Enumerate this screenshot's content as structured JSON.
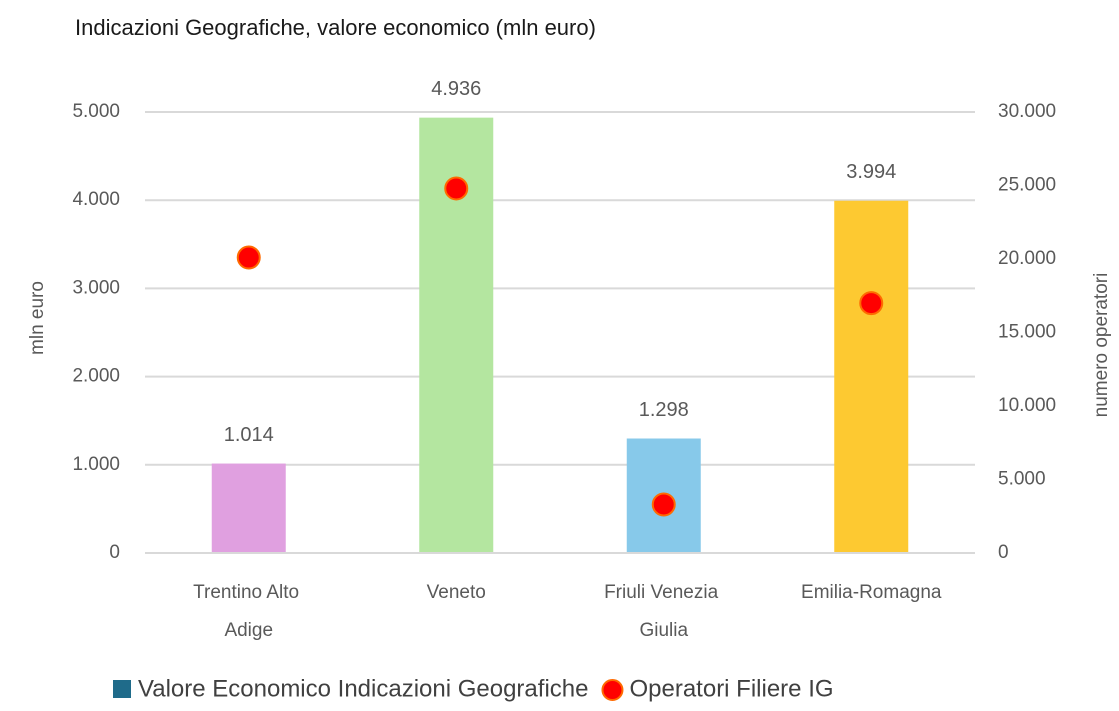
{
  "chart_data": {
    "type": "bar",
    "title": "Indicazioni Geografiche, valore economico (mln euro)",
    "categories": [
      "Trentino Alto Adige",
      "Veneto",
      "Friuli Venezia Giulia",
      "Emilia-Romagna"
    ],
    "ylabel": "mln euro",
    "y2label": "numero operatori",
    "series": [
      {
        "name": "Valore Economico Indicazioni Geografiche",
        "color": "#1f6b8a",
        "colors": [
          "#e0a0e0",
          "#b4e6a0",
          "#87c9ea",
          "#fdc931"
        ],
        "values": [
          1014,
          4936,
          1298,
          3994
        ],
        "value_labels": [
          "1.014",
          "4.936",
          "1.298",
          "3.994"
        ]
      },
      {
        "name": "Operatori Filiere IG",
        "type": "scatter",
        "color": "#ff0000",
        "axis": "y2",
        "values": [
          20100,
          24800,
          3300,
          17000
        ]
      }
    ],
    "ylim": [
      0,
      5000
    ],
    "yticks": [
      0,
      {
        "value": 1000,
        "label": "1.000"
      },
      {
        "value": 2000,
        "label": "2.000"
      },
      {
        "value": 3000,
        "label": "3.000"
      },
      {
        "value": 4000,
        "label": "4.000"
      },
      {
        "value": 5000,
        "label": "5.000"
      }
    ],
    "y2lim": [
      0,
      30000
    ],
    "y2ticks": [
      0,
      {
        "value": 5000,
        "label": "5.000"
      },
      {
        "value": 10000,
        "label": "10.000"
      },
      {
        "value": 15000,
        "label": "15.000"
      },
      {
        "value": 20000,
        "label": "20.000"
      },
      {
        "value": 25000,
        "label": "25.000"
      },
      {
        "value": 30000,
        "label": "30.000"
      }
    ],
    "grid": true,
    "legend": "bottom"
  }
}
